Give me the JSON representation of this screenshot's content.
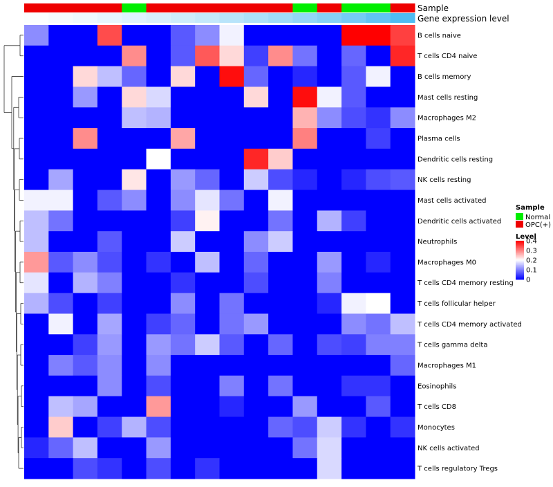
{
  "chart_data": {
    "type": "heatmap",
    "title": "",
    "annotation_tracks": [
      {
        "name": "Sample",
        "values": [
          "OPC(+)",
          "OPC(+)",
          "OPC(+)",
          "OPC(+)",
          "Normal",
          "OPC(+)",
          "OPC(+)",
          "OPC(+)",
          "OPC(+)",
          "OPC(+)",
          "OPC(+)",
          "Normal",
          "OPC(+)",
          "Normal",
          "Normal",
          "OPC(+)"
        ]
      },
      {
        "name": "Gene expression level",
        "values": [
          0.02,
          0.05,
          0.08,
          0.12,
          0.16,
          0.2,
          0.25,
          0.3,
          0.36,
          0.42,
          0.48,
          0.55,
          0.62,
          0.7,
          0.8,
          0.9
        ]
      }
    ],
    "rows": [
      "B cells naive",
      "T cells CD4 naive",
      "B cells memory",
      "Mast cells resting",
      "Macrophages M2",
      "Plasma cells",
      "Dendritic cells resting",
      "NK cells resting",
      "Mast cells activated",
      "Dendritic cells activated",
      "Neutrophils",
      "Macrophages M0",
      "T cells CD4 memory resting",
      "T cells follicular helper",
      "T cells CD4 memory activated",
      "T cells gamma delta",
      "Macrophages M1",
      "Eosinophils",
      "T cells CD8",
      "Monocytes",
      "NK cells activated",
      "T cells regulatory  Tregs"
    ],
    "values": [
      [
        0.11,
        0,
        0,
        0.34,
        0,
        0,
        0.07,
        0.11,
        0.19,
        0,
        0,
        0,
        0,
        0.4,
        0.4,
        0.35
      ],
      [
        0,
        0,
        0,
        0,
        0.29,
        0,
        0.07,
        0.33,
        0.23,
        0.05,
        0.29,
        0.09,
        0,
        0.08,
        0,
        0.37
      ],
      [
        0,
        0,
        0.23,
        0.15,
        0.08,
        0,
        0.23,
        0,
        0.39,
        0.08,
        0,
        0.03,
        0,
        0.07,
        0.19,
        0
      ],
      [
        0,
        0,
        0.12,
        0,
        0.23,
        0.17,
        0,
        0,
        0,
        0.23,
        0,
        0.39,
        0.19,
        0.07,
        0,
        0
      ],
      [
        0,
        0,
        0,
        0,
        0.15,
        0.14,
        0,
        0,
        0,
        0,
        0,
        0.26,
        0.11,
        0.06,
        0.04,
        0.11
      ],
      [
        0,
        0,
        0.29,
        0,
        0,
        0,
        0.27,
        0,
        0,
        0,
        0,
        0.3,
        0,
        0,
        0.05,
        0
      ],
      [
        0,
        0,
        0,
        0,
        0,
        0.2,
        0,
        0,
        0,
        0.37,
        0.24,
        0,
        0,
        0,
        0,
        0
      ],
      [
        0,
        0.13,
        0,
        0,
        0.22,
        0,
        0.12,
        0.08,
        0,
        0.16,
        0.06,
        0.03,
        0,
        0.03,
        0.06,
        0.07
      ],
      [
        0.19,
        0.19,
        0,
        0.07,
        0.11,
        0,
        0.11,
        0.18,
        0.09,
        0,
        0.19,
        0,
        0,
        0,
        0,
        0
      ],
      [
        0.15,
        0.09,
        0,
        0,
        0,
        0,
        0.05,
        0.21,
        0,
        0,
        0.09,
        0,
        0.14,
        0.05,
        0,
        0
      ],
      [
        0.15,
        0,
        0,
        0.07,
        0,
        0,
        0.16,
        0,
        0,
        0.11,
        0.16,
        0,
        0,
        0,
        0,
        0
      ],
      [
        0.28,
        0.07,
        0.11,
        0.06,
        0,
        0.04,
        0,
        0.15,
        0,
        0.08,
        0,
        0,
        0.12,
        0,
        0.03,
        0
      ],
      [
        0.18,
        0,
        0.14,
        0.1,
        0,
        0,
        0.04,
        0,
        0,
        0.06,
        0,
        0,
        0.1,
        0,
        0,
        0
      ],
      [
        0.14,
        0.06,
        0,
        0.05,
        0,
        0,
        0.11,
        0,
        0.09,
        0,
        0,
        0,
        0.03,
        0.19,
        0.2,
        0
      ],
      [
        0,
        0.19,
        0,
        0.13,
        0,
        0.05,
        0.08,
        0,
        0.09,
        0.12,
        0,
        0,
        0,
        0.11,
        0.09,
        0.15
      ],
      [
        0,
        0,
        0.05,
        0.12,
        0,
        0.12,
        0.09,
        0.16,
        0.07,
        0,
        0.08,
        0,
        0.06,
        0.05,
        0.1,
        0.1
      ],
      [
        0,
        0.1,
        0.07,
        0.11,
        0,
        0.11,
        0,
        0,
        0,
        0,
        0,
        0,
        0,
        0,
        0,
        0.08
      ],
      [
        0,
        0,
        0,
        0.11,
        0,
        0.06,
        0,
        0,
        0.1,
        0,
        0.09,
        0,
        0,
        0.04,
        0.04,
        0
      ],
      [
        0,
        0.15,
        0.13,
        0,
        0,
        0.28,
        0,
        0,
        0.03,
        0,
        0,
        0.12,
        0,
        0,
        0.07,
        0
      ],
      [
        0,
        0.24,
        0,
        0.05,
        0.14,
        0.06,
        0,
        0,
        0,
        0,
        0.08,
        0.06,
        0.16,
        0.04,
        0,
        0.04
      ],
      [
        0.03,
        0.08,
        0.15,
        0,
        0,
        0.12,
        0,
        0,
        0,
        0,
        0,
        0.09,
        0.17,
        0,
        0,
        0
      ],
      [
        0,
        0,
        0.06,
        0.04,
        0,
        0.06,
        0,
        0.04,
        0,
        0,
        0,
        0,
        0.17,
        0,
        0,
        0
      ]
    ],
    "legends": {
      "sample": {
        "title": "Sample",
        "items": [
          {
            "label": "Normal",
            "color": "#00ee00"
          },
          {
            "label": "OPC(+)",
            "color": "#ee0000"
          }
        ]
      },
      "level": {
        "title": "Level",
        "ticks": [
          {
            "value": 0.4,
            "label": "0.4"
          },
          {
            "value": 0.3,
            "label": "0.3"
          },
          {
            "value": 0.2,
            "label": "0.2"
          },
          {
            "value": 0.1,
            "label": "0.1"
          },
          {
            "value": 0,
            "label": "0"
          }
        ]
      }
    },
    "color_scale": {
      "low": "#0000ff",
      "mid": "#ffffff",
      "high": "#ff0000",
      "min": 0,
      "mid_value": 0.2,
      "max": 0.4
    },
    "expression_track_colors": {
      "low": "#ffffff",
      "high": "#3ab4f0"
    },
    "row_dendrogram": true,
    "grid": false,
    "legend_position": "right"
  }
}
